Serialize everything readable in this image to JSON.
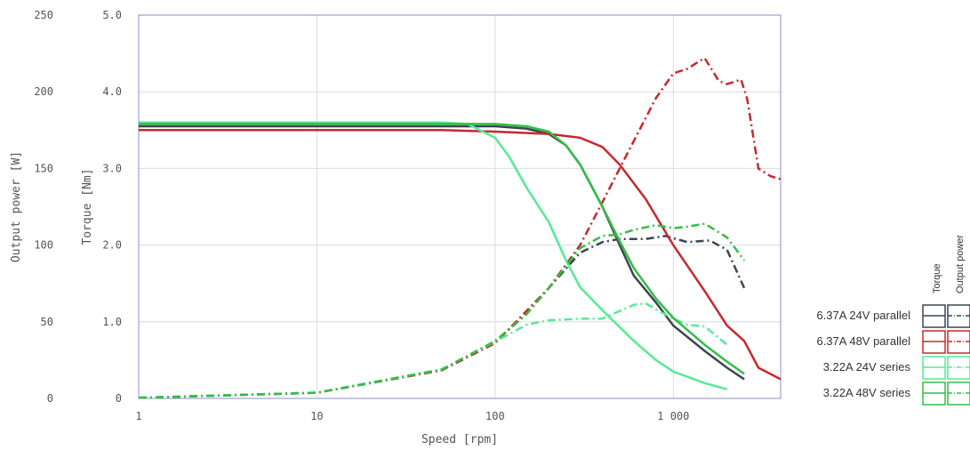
{
  "chart_data": {
    "type": "line",
    "xlabel": "Speed [rpm]",
    "ylabel_power": "Output power [W]",
    "ylabel_torque": "Torque [Nm]",
    "x_scale": "log",
    "xlim": [
      1,
      4000
    ],
    "x_ticks": [
      1,
      10,
      100,
      1000
    ],
    "x_tick_labels": [
      "1",
      "10",
      "100",
      "1 000"
    ],
    "power_ylim": [
      0,
      250
    ],
    "power_ticks": [
      "0",
      "50",
      "100",
      "150",
      "200",
      "250"
    ],
    "torque_ylim": [
      0,
      5
    ],
    "torque_ticks": [
      "0",
      "1.0",
      "2.0",
      "3.0",
      "4.0",
      "5.0"
    ],
    "grid": true,
    "legend": {
      "position": "right",
      "column_headers": [
        "Torque",
        "Output power"
      ],
      "torque_line_style": "solid",
      "power_line_style": "dash-dot"
    },
    "series": [
      {
        "name": "6.37A 24V parallel",
        "color": "#3c4650",
        "torque": {
          "x": [
            1,
            10,
            100,
            150,
            200,
            250,
            300,
            400,
            500,
            600,
            800,
            1000,
            1500,
            2000,
            2500
          ],
          "y": [
            3.55,
            3.55,
            3.55,
            3.52,
            3.45,
            3.3,
            3.05,
            2.5,
            2.0,
            1.6,
            1.25,
            0.95,
            0.62,
            0.4,
            0.25
          ]
        },
        "power": {
          "x": [
            1,
            10,
            50,
            100,
            150,
            200,
            300,
            400,
            500,
            700,
            900,
            1200,
            1600,
            2000,
            2500
          ],
          "y": [
            0.4,
            3.7,
            18.6,
            37,
            55,
            72,
            95,
            102,
            104,
            104,
            106,
            102,
            103,
            97,
            72
          ]
        }
      },
      {
        "name": "6.37A 48V parallel",
        "color": "#c8282d",
        "torque": {
          "x": [
            1,
            10,
            50,
            100,
            200,
            300,
            400,
            500,
            700,
            1000,
            1500,
            2000,
            2500,
            3000,
            4000
          ],
          "y": [
            3.5,
            3.5,
            3.5,
            3.48,
            3.45,
            3.4,
            3.28,
            3.05,
            2.6,
            2.0,
            1.4,
            0.95,
            0.75,
            0.4,
            0.25
          ]
        },
        "power": {
          "x": [
            1,
            10,
            50,
            100,
            200,
            300,
            400,
            500,
            600,
            800,
            1000,
            1200,
            1400,
            1500,
            1800,
            2000,
            2400,
            2600,
            3000,
            3500,
            4000
          ],
          "y": [
            0.4,
            3.7,
            18.3,
            36,
            72,
            100,
            128,
            150,
            168,
            196,
            212,
            215,
            220,
            222,
            207,
            205,
            208,
            195,
            150,
            145,
            143
          ]
        }
      },
      {
        "name": "3.22A 24V series",
        "color": "#55eb96",
        "torque": {
          "x": [
            1,
            10,
            50,
            70,
            100,
            120,
            150,
            200,
            250,
            300,
            400,
            600,
            800,
            1000,
            1500,
            2000
          ],
          "y": [
            3.6,
            3.6,
            3.6,
            3.58,
            3.4,
            3.15,
            2.75,
            2.3,
            1.8,
            1.45,
            1.15,
            0.75,
            0.5,
            0.35,
            0.2,
            0.12
          ]
        },
        "power": {
          "x": [
            1,
            10,
            50,
            100,
            150,
            200,
            300,
            400,
            500,
            600,
            700,
            800,
            1000,
            1200,
            1500,
            2000
          ],
          "y": [
            0.4,
            3.8,
            19,
            37,
            48,
            51,
            52,
            52,
            57,
            61,
            62,
            58,
            52,
            48,
            47,
            35
          ]
        }
      },
      {
        "name": "3.22A 48V series",
        "color": "#32be46",
        "torque": {
          "x": [
            1,
            10,
            50,
            100,
            150,
            200,
            250,
            300,
            400,
            500,
            600,
            800,
            1000,
            1500,
            2000,
            2500
          ],
          "y": [
            3.58,
            3.58,
            3.58,
            3.58,
            3.55,
            3.48,
            3.3,
            3.05,
            2.5,
            2.05,
            1.7,
            1.3,
            1.05,
            0.7,
            0.48,
            0.32
          ]
        },
        "power": {
          "x": [
            1,
            10,
            50,
            100,
            150,
            200,
            300,
            400,
            500,
            600,
            800,
            1000,
            1200,
            1500,
            2000,
            2500
          ],
          "y": [
            0.4,
            3.7,
            18.7,
            37.5,
            55,
            72,
            98,
            106,
            107,
            110,
            113,
            111,
            112,
            114,
            105,
            90
          ]
        }
      }
    ]
  }
}
